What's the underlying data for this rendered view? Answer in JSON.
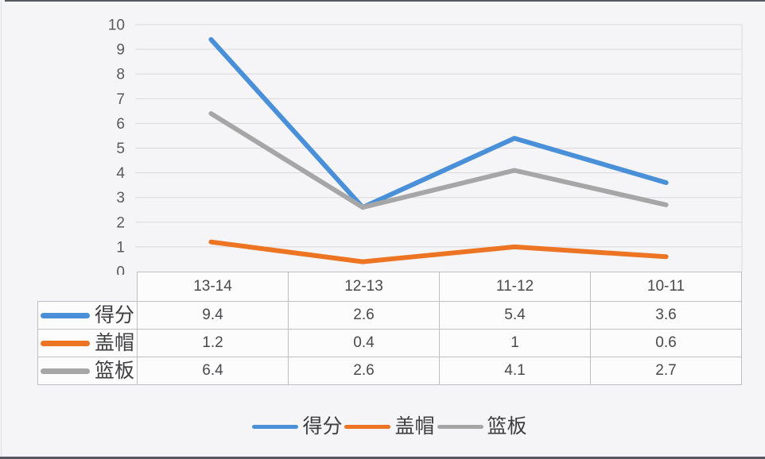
{
  "chart_data": {
    "type": "line",
    "title": "",
    "xlabel": "",
    "ylabel": "",
    "categories": [
      "13-14",
      "12-13",
      "11-12",
      "10-11"
    ],
    "series": [
      {
        "key": "score",
        "name": "得分",
        "color": "#4a90d9",
        "values": [
          9.4,
          2.6,
          5.4,
          3.6
        ]
      },
      {
        "key": "blocks",
        "name": "盖帽",
        "color": "#ed7423",
        "values": [
          1.2,
          0.4,
          1,
          0.6
        ]
      },
      {
        "key": "rebounds",
        "name": "篮板",
        "color": "#a6a6a6",
        "values": [
          6.4,
          2.6,
          4.1,
          2.7
        ]
      }
    ],
    "ylim": [
      0,
      10
    ],
    "yticks": [
      0,
      1,
      2,
      3,
      4,
      5,
      6,
      7,
      8,
      9,
      10
    ],
    "grid": true,
    "legend_position": "bottom",
    "data_table_shown": true
  },
  "colors": {
    "accent_blue": "#4a90d9",
    "accent_orange": "#ed7423",
    "accent_gray": "#a6a6a6",
    "gridline": "#d9d9db",
    "table_border": "#bfbfc2",
    "axis_text": "#59595b",
    "background": "#f5f5f7",
    "frame_edge": "#55585e"
  }
}
